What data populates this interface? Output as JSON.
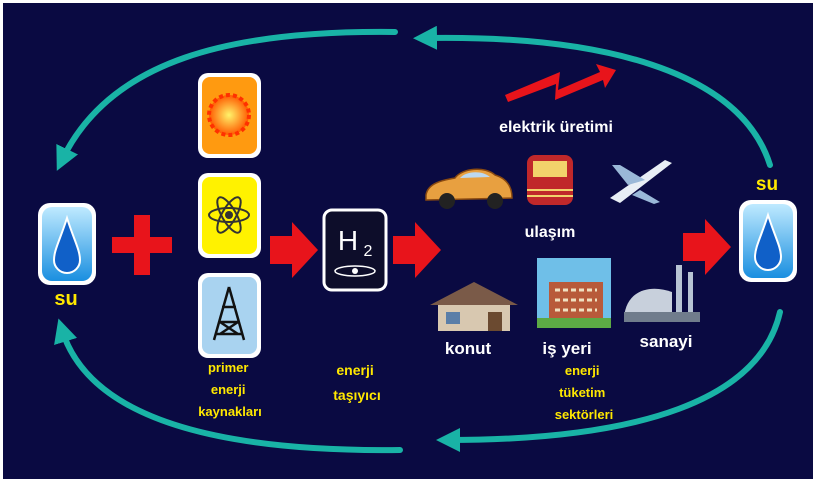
{
  "left_water": {
    "label": "su"
  },
  "primary_sources": {
    "label_lines": [
      "primer",
      "enerji",
      "kaynakları"
    ]
  },
  "carrier": {
    "symbol": "H",
    "subscript": "2",
    "label_lines": [
      "enerji",
      "taşıyıcı"
    ]
  },
  "electricity": {
    "label": "elektrik üretimi"
  },
  "transport": {
    "label": "ulaşım"
  },
  "sectors": {
    "items": [
      "konut",
      "iş yeri",
      "sanayi"
    ],
    "label_lines": [
      "enerji",
      "tüketim",
      "sektörleri"
    ]
  },
  "right_water": {
    "label": "su"
  }
}
